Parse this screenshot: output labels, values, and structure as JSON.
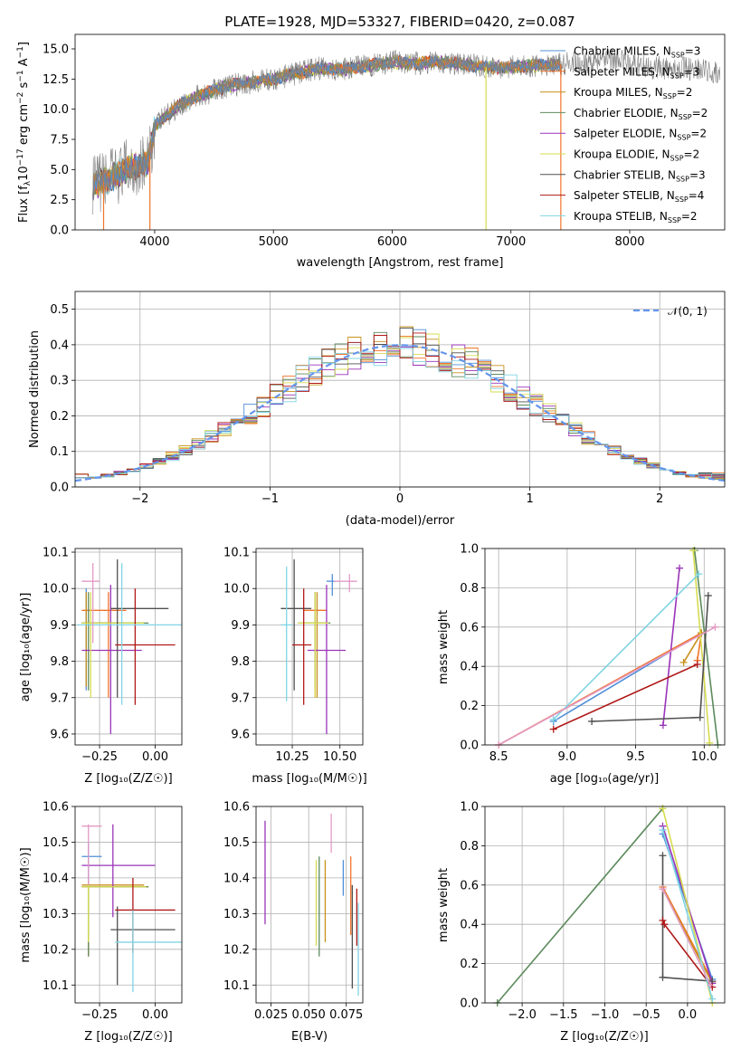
{
  "title": "PLATE=1928, MJD=53327, FIBERID=0420, z=0.087",
  "colors": {
    "data": "#808080",
    "models": [
      "#4f8fd8",
      "#f0742a",
      "#c8901c",
      "#5c8a5c",
      "#9a34b8",
      "#d6dc50",
      "#505050",
      "#b01818",
      "#80d4e4"
    ],
    "ssp_extra": "#e39ac4",
    "normal": "#6495ed"
  },
  "legend_spectrum": [
    {
      "base": "Chabrier MILES, N",
      "sub": "SSP",
      "tail": "=3"
    },
    {
      "base": "Salpeter MILES, N",
      "sub": "SSP",
      "tail": "=3"
    },
    {
      "base": "Kroupa MILES, N",
      "sub": "SSP",
      "tail": "=2"
    },
    {
      "base": "Chabrier ELODIE, N",
      "sub": "SSP",
      "tail": "=2"
    },
    {
      "base": "Salpeter ELODIE, N",
      "sub": "SSP",
      "tail": "=2"
    },
    {
      "base": "Kroupa ELODIE, N",
      "sub": "SSP",
      "tail": "=2"
    },
    {
      "base": "Chabrier STELIB, N",
      "sub": "SSP",
      "tail": "=3"
    },
    {
      "base": "Salpeter STELIB, N",
      "sub": "SSP",
      "tail": "=4"
    },
    {
      "base": "Kroupa STELIB, N",
      "sub": "SSP",
      "tail": "=2"
    }
  ],
  "legend_hist": "𝒩(0, 1)",
  "chart_data": [
    {
      "type": "line",
      "id": "spectrum",
      "xlabel": "wavelength [Angstrom, rest frame]",
      "ylabel": "Flux [f_λ 10^-17 erg cm^-2 s^-1 A^-1]",
      "xlim": [
        3330,
        8800
      ],
      "ylim": [
        0,
        16.2
      ],
      "xticks": [
        4000,
        5000,
        6000,
        7000,
        8000
      ],
      "yticks": [
        0.0,
        2.5,
        5.0,
        7.5,
        10.0,
        12.5,
        15.0
      ],
      "grid": false,
      "legend": "top-right",
      "continuum": [
        [
          3480,
          3.6
        ],
        [
          3650,
          4.4
        ],
        [
          3800,
          5.2
        ],
        [
          3950,
          5.6
        ],
        [
          4000,
          8.6
        ],
        [
          4200,
          10.3
        ],
        [
          4400,
          11.2
        ],
        [
          4600,
          11.9
        ],
        [
          4800,
          12.2
        ],
        [
          5000,
          12.5
        ],
        [
          5200,
          13.0
        ],
        [
          5400,
          13.4
        ],
        [
          5600,
          13.3
        ],
        [
          5800,
          13.6
        ],
        [
          6000,
          13.9
        ],
        [
          6200,
          13.8
        ],
        [
          6400,
          13.9
        ],
        [
          6600,
          13.7
        ],
        [
          6800,
          13.5
        ],
        [
          7000,
          13.5
        ],
        [
          7200,
          13.6
        ],
        [
          7400,
          13.7
        ],
        [
          7600,
          13.8
        ],
        [
          7800,
          14.3
        ],
        [
          8000,
          13.8
        ],
        [
          8200,
          13.4
        ],
        [
          8400,
          13.5
        ],
        [
          8600,
          13.2
        ],
        [
          8750,
          12.9
        ]
      ],
      "model_end": 7420,
      "spikes": [
        [
          6790,
          0
        ],
        [
          7420,
          0
        ],
        [
          3570,
          0
        ],
        [
          3960,
          0
        ]
      ]
    },
    {
      "type": "bar",
      "id": "residual-histogram",
      "xlabel": "(data-model)/error",
      "ylabel": "Normed distribution",
      "xlim": [
        -2.5,
        2.5
      ],
      "ylim": [
        0,
        0.55
      ],
      "xticks": [
        -2,
        -1,
        0,
        1,
        2
      ],
      "yticks": [
        0.0,
        0.1,
        0.2,
        0.3,
        0.4,
        0.5
      ],
      "grid": true,
      "legend": "top-right",
      "bin_width": 0.1,
      "n_histograms": 9,
      "normal_curve": {
        "mean": 0,
        "sigma": 1,
        "name": "𝒩(0, 1)"
      }
    },
    {
      "type": "scatter",
      "id": "age-vs-metallicity",
      "xlabel": "Z [log₁₀(Z/Z☉)]",
      "ylabel": "age [log₁₀(age/yr)]",
      "xlim": [
        -0.36,
        0.12
      ],
      "ylim": [
        9.57,
        10.11
      ],
      "xticks": [
        -0.25,
        0.0
      ],
      "ytick_labels": [
        "9.6",
        "9.7",
        "9.8",
        "9.9",
        "10.0",
        "10.1"
      ],
      "points": [
        {
          "c": 0,
          "x": -0.31,
          "y": 9.905,
          "xe": [
            -0.33,
            -0.14
          ],
          "ye": [
            9.72,
            10.0
          ]
        },
        {
          "c": 1,
          "x": -0.21,
          "y": 9.94,
          "xe": [
            -0.33,
            -0.13
          ],
          "ye": [
            9.7,
            9.99
          ]
        },
        {
          "c": 2,
          "x": -0.31,
          "y": 9.905,
          "xe": [
            -0.33,
            -0.05
          ],
          "ye": [
            9.73,
            9.99
          ]
        },
        {
          "c": 3,
          "x": -0.3,
          "y": 9.905,
          "xe": [
            -0.33,
            -0.03
          ],
          "ye": [
            9.72,
            9.99
          ]
        },
        {
          "c": 4,
          "x": -0.2,
          "y": 9.83,
          "xe": [
            -0.33,
            -0.06
          ],
          "ye": [
            9.6,
            10.01
          ]
        },
        {
          "c": 5,
          "x": -0.29,
          "y": 9.905,
          "xe": [
            -0.33,
            -0.05
          ],
          "ye": [
            9.7,
            9.99
          ]
        },
        {
          "c": 6,
          "x": -0.17,
          "y": 9.945,
          "xe": [
            -0.2,
            0.06
          ],
          "ye": [
            9.7,
            10.08
          ]
        },
        {
          "c": 7,
          "x": -0.09,
          "y": 9.845,
          "xe": [
            -0.18,
            0.09
          ],
          "ye": [
            9.68,
            10.0
          ]
        },
        {
          "c": 8,
          "x": -0.15,
          "y": 9.9,
          "xe": [
            -0.35,
            0.12
          ],
          "ye": [
            9.68,
            10.07
          ]
        },
        {
          "c": 9,
          "x": -0.28,
          "y": 10.02,
          "xe": [
            -0.33,
            -0.25
          ],
          "ye": [
            9.85,
            10.07
          ]
        }
      ]
    },
    {
      "type": "scatter",
      "id": "age-vs-mass",
      "xlabel": "mass [log₁₀(M/M☉)]",
      "ylabel": "",
      "xlim": [
        10.06,
        10.62
      ],
      "ylim": [
        9.57,
        10.11
      ],
      "xticks": [
        10.25,
        10.5
      ],
      "ytick_labels": [
        "9.6",
        "9.7",
        "9.8",
        "9.9",
        "10.0",
        "10.1"
      ],
      "points": [
        {
          "c": 0,
          "x": 10.46,
          "y": 10.02,
          "xe": [
            10.43,
            10.48
          ],
          "ye": [
            9.98,
            10.04
          ]
        },
        {
          "c": 1,
          "x": 10.37,
          "y": 9.94,
          "xe": [
            10.31,
            10.43
          ],
          "ye": [
            9.7,
            9.99
          ]
        },
        {
          "c": 2,
          "x": 10.38,
          "y": 9.905,
          "xe": [
            10.32,
            10.43
          ],
          "ye": [
            9.7,
            9.99
          ]
        },
        {
          "c": 3,
          "x": 10.37,
          "y": 9.905,
          "xe": [
            10.28,
            10.45
          ],
          "ye": [
            9.73,
            9.99
          ]
        },
        {
          "c": 4,
          "x": 10.43,
          "y": 9.83,
          "xe": [
            10.33,
            10.53
          ],
          "ye": [
            9.6,
            10.01
          ]
        },
        {
          "c": 5,
          "x": 10.37,
          "y": 9.905,
          "xe": [
            10.28,
            10.44
          ],
          "ye": [
            9.7,
            9.99
          ]
        },
        {
          "c": 6,
          "x": 10.26,
          "y": 9.945,
          "xe": [
            10.19,
            10.35
          ],
          "ye": [
            9.72,
            10.08
          ]
        },
        {
          "c": 7,
          "x": 10.31,
          "y": 9.845,
          "xe": [
            10.25,
            10.35
          ],
          "ye": [
            9.68,
            10.0
          ]
        },
        {
          "c": 8,
          "x": 10.22,
          "y": 9.9,
          "xe": [
            10.19,
            10.25
          ],
          "ye": [
            9.69,
            10.06
          ]
        },
        {
          "c": 9,
          "x": 10.55,
          "y": 10.02,
          "xe": [
            10.47,
            10.59
          ],
          "ye": [
            9.99,
            10.04
          ]
        }
      ]
    },
    {
      "type": "line",
      "id": "mass-weight-vs-age",
      "xlabel": "age [log₁₀(age/yr)]",
      "ylabel": "mass weight",
      "xlim": [
        8.4,
        10.15
      ],
      "ylim": [
        0,
        1
      ],
      "xticks": [
        8.5,
        9.0,
        9.5,
        10.0
      ],
      "yticks": [
        0.0,
        0.2,
        0.4,
        0.6,
        0.8,
        1.0
      ],
      "grid": true,
      "series": [
        {
          "c": 0,
          "points": [
            [
              8.9,
              0.12
            ],
            [
              9.98,
              0.57
            ]
          ]
        },
        {
          "c": 1,
          "points": [
            [
              8.5,
              0.0
            ],
            [
              9.98,
              0.57
            ],
            [
              9.95,
              0.43
            ]
          ]
        },
        {
          "c": 2,
          "points": [
            [
              9.85,
              0.42
            ],
            [
              9.98,
              0.57
            ]
          ]
        },
        {
          "c": 3,
          "points": [
            [
              9.93,
              0.99
            ],
            [
              10.1,
              0.0
            ]
          ]
        },
        {
          "c": 4,
          "points": [
            [
              9.7,
              0.1
            ],
            [
              9.82,
              0.9
            ]
          ]
        },
        {
          "c": 5,
          "points": [
            [
              9.92,
              0.99
            ],
            [
              10.04,
              0.01
            ]
          ]
        },
        {
          "c": 6,
          "points": [
            [
              9.18,
              0.12
            ],
            [
              9.97,
              0.14
            ],
            [
              10.03,
              0.76
            ]
          ]
        },
        {
          "c": 7,
          "points": [
            [
              8.9,
              0.08
            ],
            [
              9.95,
              0.41
            ]
          ]
        },
        {
          "c": 8,
          "points": [
            [
              8.9,
              0.13
            ],
            [
              9.96,
              0.87
            ]
          ]
        },
        {
          "c": 9,
          "points": [
            [
              8.5,
              0.0
            ],
            [
              10.08,
              0.6
            ]
          ]
        }
      ]
    },
    {
      "type": "scatter",
      "id": "mass-vs-metallicity",
      "xlabel": "Z [log₁₀(Z/Z☉)]",
      "ylabel": "mass [log₁₀(M/M☉)]",
      "xlim": [
        -0.36,
        0.12
      ],
      "ylim": [
        10.05,
        10.6
      ],
      "xticks": [
        -0.25,
        0.0
      ],
      "ytick_labels": [
        "10.1",
        "10.2",
        "10.3",
        "10.4",
        "10.5",
        "10.6"
      ],
      "points": [
        {
          "c": 0,
          "x": -0.3,
          "y": 10.46,
          "xe": [
            -0.33,
            -0.24
          ],
          "ye": [
            10.3,
            10.5
          ]
        },
        {
          "c": 1,
          "x": -0.3,
          "y": 10.375,
          "xe": [
            -0.33,
            -0.03
          ],
          "ye": [
            10.18,
            10.38
          ]
        },
        {
          "c": 2,
          "x": -0.3,
          "y": 10.38,
          "xe": [
            -0.33,
            -0.05
          ],
          "ye": [
            10.22,
            10.39
          ]
        },
        {
          "c": 3,
          "x": -0.3,
          "y": 10.375,
          "xe": [
            -0.33,
            -0.03
          ],
          "ye": [
            10.18,
            10.38
          ]
        },
        {
          "c": 4,
          "x": -0.19,
          "y": 10.435,
          "xe": [
            -0.33,
            0.0
          ],
          "ye": [
            10.29,
            10.55
          ]
        },
        {
          "c": 5,
          "x": -0.3,
          "y": 10.375,
          "xe": [
            -0.33,
            -0.04
          ],
          "ye": [
            10.22,
            10.38
          ]
        },
        {
          "c": 6,
          "x": -0.17,
          "y": 10.255,
          "xe": [
            -0.2,
            0.09
          ],
          "ye": [
            10.1,
            10.32
          ]
        },
        {
          "c": 7,
          "x": -0.1,
          "y": 10.31,
          "xe": [
            -0.18,
            0.09
          ],
          "ye": [
            10.19,
            10.4
          ]
        },
        {
          "c": 8,
          "x": -0.1,
          "y": 10.22,
          "xe": [
            -0.18,
            0.12
          ],
          "ye": [
            10.08,
            10.31
          ]
        },
        {
          "c": 9,
          "x": -0.3,
          "y": 10.545,
          "xe": [
            -0.33,
            -0.24
          ],
          "ye": [
            10.38,
            10.55
          ]
        }
      ]
    },
    {
      "type": "scatter",
      "id": "mass-vs-extinction",
      "xlabel": "E(B-V)",
      "ylabel": "",
      "xlim": [
        0.015,
        0.086
      ],
      "ylim": [
        10.05,
        10.6
      ],
      "xticks": [
        0.025,
        0.05,
        0.075
      ],
      "ytick_labels": [
        "10.1",
        "10.2",
        "10.3",
        "10.4",
        "10.5",
        "10.6"
      ],
      "points": [
        {
          "c": 0,
          "x": 0.073,
          "y": 10.4,
          "ye": [
            10.35,
            10.45
          ]
        },
        {
          "c": 1,
          "x": 0.078,
          "y": 10.35,
          "ye": [
            10.24,
            10.46
          ]
        },
        {
          "c": 2,
          "x": 0.061,
          "y": 10.35,
          "ye": [
            10.22,
            10.45
          ]
        },
        {
          "c": 3,
          "x": 0.057,
          "y": 10.32,
          "ye": [
            10.18,
            10.46
          ]
        },
        {
          "c": 4,
          "x": 0.021,
          "y": 10.43,
          "ye": [
            10.27,
            10.56
          ]
        },
        {
          "c": 5,
          "x": 0.055,
          "y": 10.33,
          "ye": [
            10.21,
            10.45
          ]
        },
        {
          "c": 6,
          "x": 0.079,
          "y": 10.25,
          "ye": [
            10.09,
            10.38
          ]
        },
        {
          "c": 7,
          "x": 0.082,
          "y": 10.3,
          "ye": [
            10.21,
            10.37
          ]
        },
        {
          "c": 8,
          "x": 0.083,
          "y": 10.2,
          "ye": [
            10.07,
            10.33
          ]
        },
        {
          "c": 9,
          "x": 0.065,
          "y": 10.52,
          "ye": [
            10.47,
            10.58
          ]
        }
      ]
    },
    {
      "type": "line",
      "id": "mass-weight-vs-metallicity",
      "xlabel": "Z [log₁₀(Z/Z☉)]",
      "ylabel": "mass weight",
      "xlim": [
        -2.45,
        0.45
      ],
      "ylim": [
        0,
        1
      ],
      "xticks": [
        -2.0,
        -1.5,
        -1.0,
        -0.5,
        0.0
      ],
      "xtick_labels": [
        "−2.0",
        "−1.5",
        "−1.0",
        "−0.5",
        "0.0"
      ],
      "yticks": [
        0.0,
        0.2,
        0.4,
        0.6,
        0.8,
        1.0
      ],
      "grid": true,
      "series": [
        {
          "c": 0,
          "points": [
            [
              -0.3,
              0.86
            ],
            [
              0.3,
              0.12
            ]
          ]
        },
        {
          "c": 1,
          "points": [
            [
              -0.3,
              0.59
            ],
            [
              0.3,
              0.11
            ]
          ]
        },
        {
          "c": 2,
          "points": [
            [
              -0.3,
              0.58
            ],
            [
              0.3,
              0.1
            ]
          ]
        },
        {
          "c": 3,
          "points": [
            [
              -2.3,
              0.0
            ],
            [
              -0.3,
              0.99
            ]
          ]
        },
        {
          "c": 4,
          "points": [
            [
              -0.3,
              0.9
            ],
            [
              0.3,
              0.1
            ]
          ]
        },
        {
          "c": 5,
          "points": [
            [
              -0.3,
              0.99
            ],
            [
              0.3,
              0.0
            ]
          ]
        },
        {
          "c": 6,
          "points": [
            [
              -0.3,
              0.75
            ],
            [
              -0.3,
              0.13
            ],
            [
              0.3,
              0.11
            ]
          ]
        },
        {
          "c": 7,
          "points": [
            [
              -0.3,
              0.42
            ],
            [
              -0.28,
              0.4
            ],
            [
              0.3,
              0.08
            ]
          ]
        },
        {
          "c": 8,
          "points": [
            [
              -0.3,
              0.88
            ],
            [
              0.3,
              0.02
            ]
          ]
        },
        {
          "c": 9,
          "points": [
            [
              -0.3,
              0.58
            ],
            [
              0.28,
              0.09
            ]
          ]
        }
      ]
    }
  ]
}
